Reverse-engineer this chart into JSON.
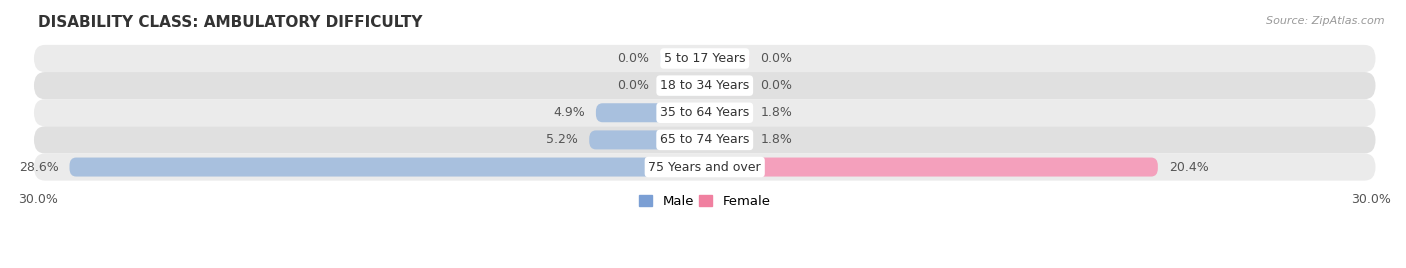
{
  "title": "DISABILITY CLASS: AMBULATORY DIFFICULTY",
  "source": "Source: ZipAtlas.com",
  "categories": [
    "5 to 17 Years",
    "18 to 34 Years",
    "35 to 64 Years",
    "65 to 74 Years",
    "75 Years and over"
  ],
  "male_values": [
    0.0,
    0.0,
    4.9,
    5.2,
    28.6
  ],
  "female_values": [
    0.0,
    0.0,
    1.8,
    1.8,
    20.4
  ],
  "x_max": 30.0,
  "male_color": "#a8c0de",
  "female_color": "#f4a0bc",
  "row_bg_even": "#ebebeb",
  "row_bg_odd": "#e0e0e0",
  "label_color": "#555555",
  "title_color": "#333333",
  "bar_height": 0.7,
  "min_bar_width": 2.0,
  "legend_male_color": "#7b9fd4",
  "legend_female_color": "#f080a0",
  "category_label_fontsize": 9,
  "value_label_fontsize": 9,
  "title_fontsize": 11
}
